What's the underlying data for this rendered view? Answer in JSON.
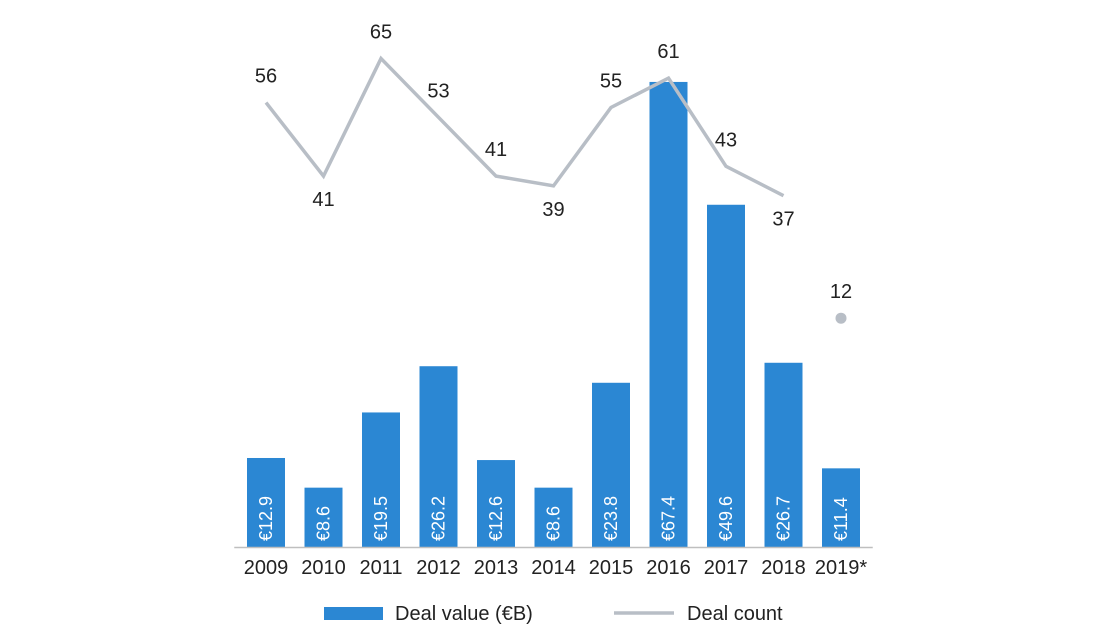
{
  "chart_data": {
    "type": "bar",
    "categories": [
      "2009",
      "2010",
      "2011",
      "2012",
      "2013",
      "2014",
      "2015",
      "2016",
      "2017",
      "2018",
      "2019*"
    ],
    "series": [
      {
        "name": "Deal value (€B)",
        "type": "bar",
        "color": "#2b87d3",
        "values": [
          12.9,
          8.6,
          19.5,
          26.2,
          12.6,
          8.6,
          23.8,
          67.4,
          49.6,
          26.7,
          11.4
        ],
        "labels": [
          "€12.9",
          "€8.6",
          "€19.5",
          "€26.2",
          "€12.6",
          "€8.6",
          "€23.8",
          "€67.4",
          "€49.6",
          "€26.7",
          "€11.4"
        ]
      },
      {
        "name": "Deal count",
        "type": "line",
        "color": "#b8bec6",
        "values": [
          56,
          41,
          65,
          53,
          41,
          39,
          55,
          61,
          43,
          37,
          12
        ],
        "labels": [
          "56",
          "41",
          "65",
          "53",
          "41",
          "39",
          "55",
          "61",
          "43",
          "37",
          "12"
        ]
      }
    ],
    "legend": {
      "position": "bottom",
      "items": [
        "Deal value (€B)",
        "Deal count"
      ]
    },
    "title": "",
    "xlabel": "",
    "ylabel": "",
    "grid": false
  }
}
